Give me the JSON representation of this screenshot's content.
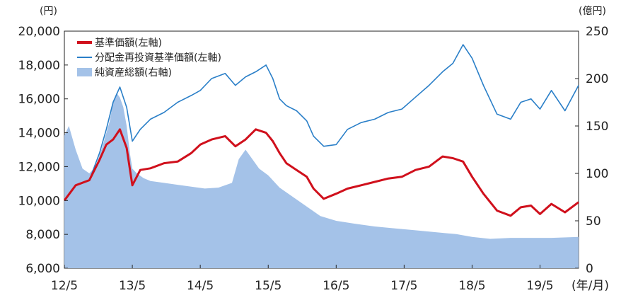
{
  "chart_data": {
    "type": "line",
    "title": "",
    "left_axis": {
      "unit": "(円)",
      "ylim": [
        6000,
        20000
      ],
      "ticks": [
        "6,000",
        "8,000",
        "10,000",
        "12,000",
        "14,000",
        "16,000",
        "18,000",
        "20,000"
      ],
      "tick_values": [
        6000,
        8000,
        10000,
        12000,
        14000,
        16000,
        18000,
        20000
      ]
    },
    "right_axis": {
      "unit": "(億円)",
      "ylim": [
        0,
        250
      ],
      "ticks": [
        "0",
        "50",
        "100",
        "150",
        "200",
        "250"
      ],
      "tick_values": [
        0,
        50,
        100,
        150,
        200,
        250
      ]
    },
    "x_axis": {
      "unit": "(年/月)",
      "ticks": [
        "12/5",
        "13/5",
        "14/5",
        "15/5",
        "16/5",
        "17/5",
        "18/5",
        "19/5"
      ],
      "tick_positions": [
        2012.333,
        2013.333,
        2014.333,
        2015.333,
        2016.333,
        2017.333,
        2018.333,
        2019.333
      ],
      "range": [
        2012.333,
        2019.9
      ]
    },
    "legend": {
      "placement": "top-left",
      "entries": [
        {
          "label": "基準価額(左軸)",
          "color": "#d0101c",
          "style": "line"
        },
        {
          "label": "分配金再投資基準価額(左軸)",
          "color": "#2a7fc8",
          "style": "line"
        },
        {
          "label": "純資産総額(右軸)",
          "color": "#a4c2e8",
          "style": "area"
        }
      ]
    },
    "series": [
      {
        "name": "純資産総額(右軸)",
        "axis": "right",
        "type": "area",
        "color": "#a4c2e8",
        "x": [
          2012.333,
          2012.4,
          2012.5,
          2012.6,
          2012.7,
          2012.8,
          2012.9,
          2013.0,
          2013.05,
          2013.1,
          2013.15,
          2013.2,
          2013.25,
          2013.3,
          2013.333,
          2013.4,
          2013.5,
          2013.6,
          2013.8,
          2014.0,
          2014.2,
          2014.4,
          2014.6,
          2014.8,
          2014.9,
          2015.0,
          2015.1,
          2015.2,
          2015.333,
          2015.5,
          2015.7,
          2015.9,
          2016.1,
          2016.333,
          2016.6,
          2016.9,
          2017.2,
          2017.5,
          2017.8,
          2018.1,
          2018.333,
          2018.6,
          2018.9,
          2019.2,
          2019.5,
          2019.9
        ],
        "values": [
          140,
          150,
          125,
          105,
          100,
          108,
          130,
          155,
          175,
          185,
          180,
          170,
          150,
          120,
          105,
          100,
          95,
          92,
          90,
          88,
          86,
          84,
          85,
          90,
          115,
          125,
          115,
          105,
          98,
          85,
          75,
          65,
          55,
          50,
          47,
          44,
          42,
          40,
          38,
          36,
          33,
          31,
          32,
          32,
          32,
          33
        ]
      },
      {
        "name": "分配金再投資基準価額(左軸)",
        "axis": "left",
        "type": "line",
        "color": "#2a7fc8",
        "x": [
          2012.333,
          2012.5,
          2012.7,
          2012.85,
          2012.95,
          2013.05,
          2013.15,
          2013.25,
          2013.333,
          2013.45,
          2013.6,
          2013.8,
          2014.0,
          2014.2,
          2014.333,
          2014.5,
          2014.7,
          2014.85,
          2015.0,
          2015.15,
          2015.3,
          2015.4,
          2015.5,
          2015.6,
          2015.75,
          2015.9,
          2016.0,
          2016.15,
          2016.333,
          2016.5,
          2016.7,
          2016.9,
          2017.1,
          2017.3,
          2017.5,
          2017.7,
          2017.9,
          2018.05,
          2018.2,
          2018.333,
          2018.5,
          2018.7,
          2018.9,
          2019.05,
          2019.2,
          2019.333,
          2019.5,
          2019.7,
          2019.9
        ],
        "values": [
          10000,
          10900,
          11200,
          12800,
          14200,
          15800,
          16700,
          15500,
          13500,
          14200,
          14800,
          15200,
          15800,
          16200,
          16500,
          17200,
          17500,
          16800,
          17300,
          17600,
          18000,
          17200,
          16000,
          15600,
          15300,
          14700,
          13800,
          13200,
          13300,
          14200,
          14600,
          14800,
          15200,
          15400,
          16100,
          16800,
          17600,
          18100,
          19200,
          18400,
          16800,
          15100,
          14800,
          15800,
          16000,
          15400,
          16500,
          15300,
          16800
        ]
      },
      {
        "name": "基準価額(左軸)",
        "axis": "left",
        "type": "line",
        "color": "#d0101c",
        "x": [
          2012.333,
          2012.5,
          2012.7,
          2012.85,
          2012.95,
          2013.05,
          2013.15,
          2013.25,
          2013.333,
          2013.45,
          2013.6,
          2013.8,
          2014.0,
          2014.2,
          2014.333,
          2014.5,
          2014.7,
          2014.85,
          2015.0,
          2015.15,
          2015.3,
          2015.4,
          2015.5,
          2015.6,
          2015.75,
          2015.9,
          2016.0,
          2016.15,
          2016.333,
          2016.5,
          2016.7,
          2016.9,
          2017.1,
          2017.3,
          2017.5,
          2017.7,
          2017.9,
          2018.05,
          2018.2,
          2018.333,
          2018.5,
          2018.7,
          2018.9,
          2019.05,
          2019.2,
          2019.333,
          2019.5,
          2019.7,
          2019.9
        ],
        "values": [
          10000,
          10900,
          11200,
          12400,
          13300,
          13600,
          14200,
          13100,
          10900,
          11800,
          11900,
          12200,
          12300,
          12800,
          13300,
          13600,
          13800,
          13200,
          13600,
          14200,
          14000,
          13500,
          12800,
          12200,
          11800,
          11400,
          10700,
          10100,
          10400,
          10700,
          10900,
          11100,
          11300,
          11400,
          11800,
          12000,
          12600,
          12500,
          12300,
          11400,
          10400,
          9400,
          9100,
          9600,
          9700,
          9200,
          9800,
          9300,
          9900
        ]
      }
    ]
  }
}
